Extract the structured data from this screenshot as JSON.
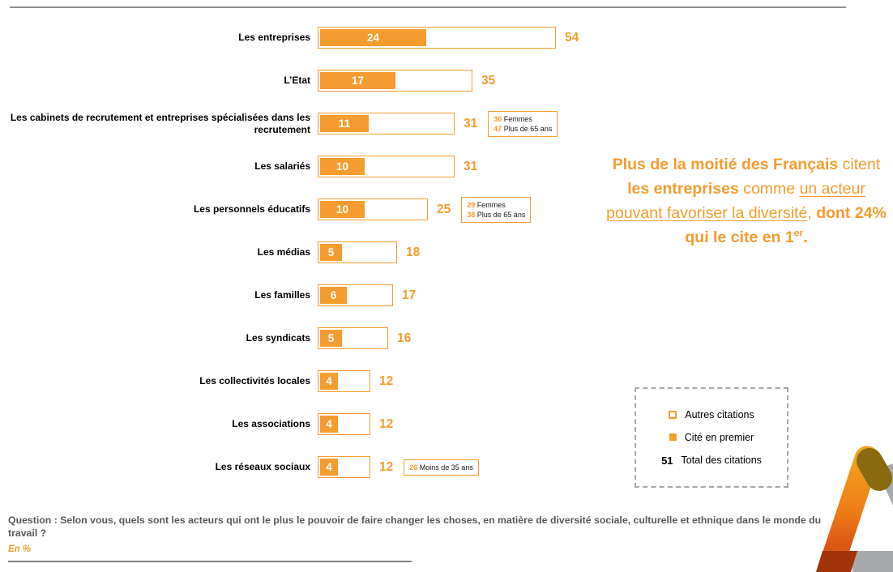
{
  "chart_data": {
    "type": "bar",
    "orientation": "horizontal",
    "unit": "En %",
    "categories": [
      "Les entreprises",
      "L’Etat",
      "Les cabinets de recrutement et entreprises spécialisées dans les recrutement",
      "Les salariés",
      "Les personnels éducatifs",
      "Les médias",
      "Les familles",
      "Les syndicats",
      "Les collectivités locales",
      "Les associations",
      "Les réseaux sociaux"
    ],
    "series": [
      {
        "name": "Cité en premier",
        "values": [
          24,
          17,
          11,
          10,
          10,
          5,
          6,
          5,
          4,
          4,
          4
        ]
      },
      {
        "name": "Total des citations",
        "values": [
          54,
          35,
          31,
          31,
          25,
          18,
          17,
          16,
          12,
          12,
          12
        ]
      }
    ],
    "xlim": [
      0,
      60
    ],
    "grid": false,
    "legend_position": "right",
    "annotations": [
      {
        "row": 2,
        "lines": [
          {
            "value": "36",
            "label": "Femmes"
          },
          {
            "value": "47",
            "label": "Plus de 65 ans"
          }
        ]
      },
      {
        "row": 4,
        "lines": [
          {
            "value": "29",
            "label": "Femmes"
          },
          {
            "value": "38",
            "label": "Plus de 65 ans"
          }
        ]
      },
      {
        "row": 10,
        "lines": [
          {
            "value": "26",
            "label": "Moins de 35 ans"
          }
        ]
      }
    ]
  },
  "headline": {
    "part1": "Plus de la moitié des Français ",
    "part2": "citent ",
    "part3": "les entreprises",
    "part4": " comme ",
    "part5": "un acteur pouvant favoriser la diversité",
    "part6": ", ",
    "part7": "dont 24% qui le cite en 1",
    "part7_sup": "er",
    "part8": "."
  },
  "legend": {
    "items": [
      {
        "label": "Autres citations"
      },
      {
        "label": "Cité en premier"
      },
      {
        "value": "51",
        "label": "Total des citations"
      }
    ]
  },
  "footer": {
    "question": "Question : Selon vous, quels sont les acteurs qui ont le plus le pouvoir de faire changer les choses, en matière de diversité sociale, culturelle et ethnique dans le monde du travail ?",
    "unit_note": "En %"
  },
  "colors": {
    "accent_orange": "#F49C2F",
    "question_gray": "#595959",
    "logo_olive": "#8A6A10",
    "logo_dark_red": "#A23208",
    "logo_gray": "#A7A9AC"
  }
}
